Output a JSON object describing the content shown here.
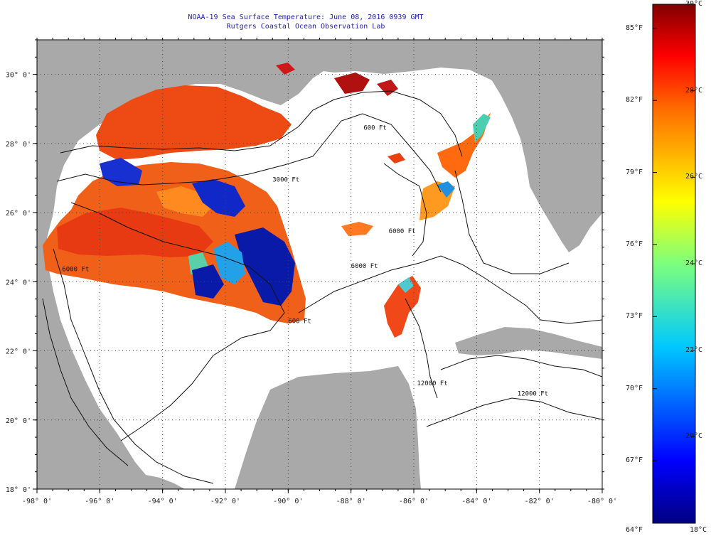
{
  "title": "NOAA-19 Sea Surface Temperature:  June 08, 2016 0939 GMT",
  "subtitle": "Rutgers Coastal Ocean Observation Lab",
  "axes": {
    "lon_labels": [
      "-98° 0'",
      "-96° 0'",
      "-94° 0'",
      "-92° 0'",
      "-90° 0'",
      "-88° 0'",
      "-86° 0'",
      "-84° 0'",
      "-82° 0'",
      "-80° 0'"
    ],
    "lat_labels": [
      "30° 0'",
      "28° 0'",
      "26° 0'",
      "24° 0'",
      "22° 0'",
      "20° 0'",
      "18° 0'"
    ],
    "lon_range": [
      -98,
      -80
    ],
    "lat_range": [
      18,
      31
    ]
  },
  "contour_labels": [
    "600 Ft",
    "3000 Ft",
    "6000 Ft",
    "600 Ft",
    "6000 Ft",
    "12000 Ft",
    "12000 Ft",
    "6000 Ft"
  ],
  "colorbar": {
    "min_c": 18,
    "max_c": 30,
    "celsius_labels": [
      "30°C",
      "28°C",
      "26°C",
      "24°C",
      "22°C",
      "20°C",
      "18°C"
    ],
    "fahrenheit_labels": [
      "85°F",
      "82°F",
      "79°F",
      "76°F",
      "73°F",
      "70°F",
      "67°F",
      "64°F"
    ]
  },
  "colors": {
    "land": "#a9a9a9",
    "ocean_nodata": "#ffffff",
    "grid": "#555555",
    "title": "#1d1db0"
  }
}
